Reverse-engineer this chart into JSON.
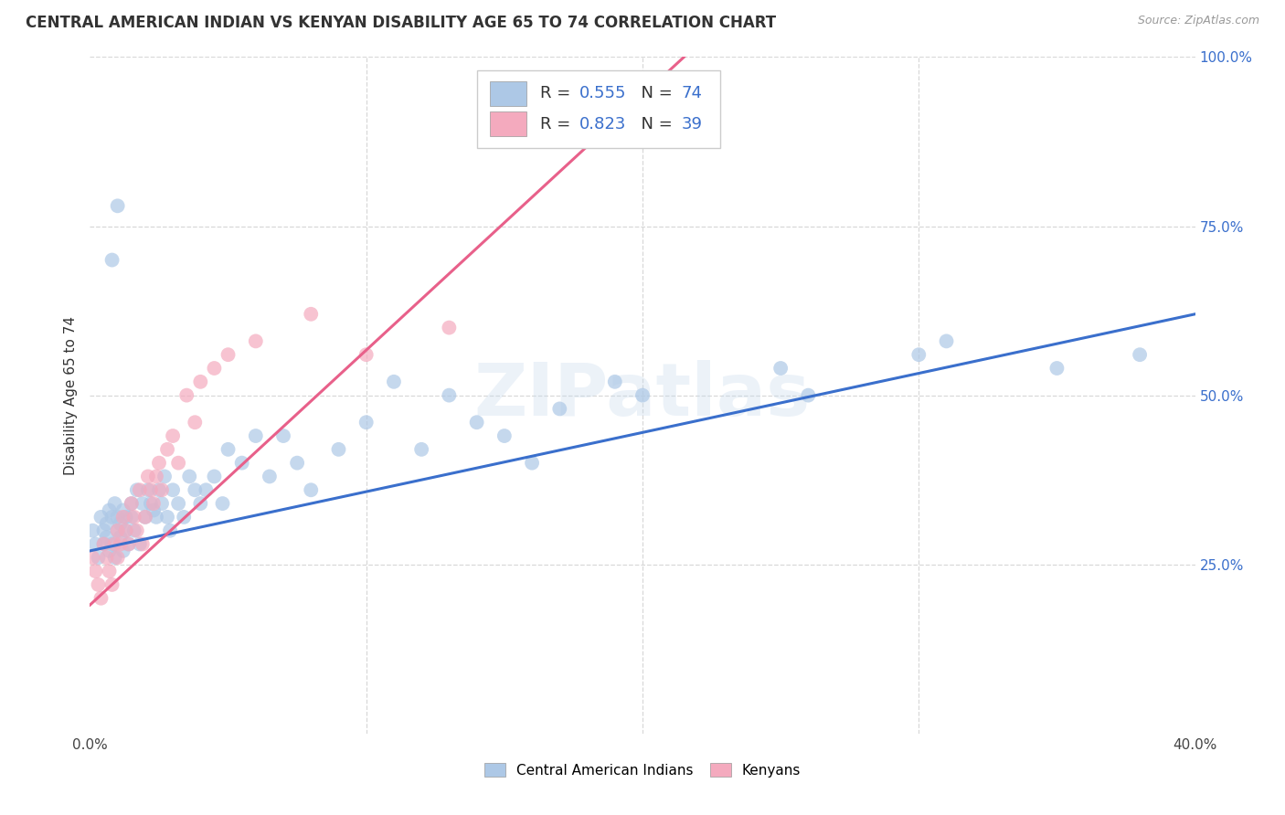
{
  "title": "CENTRAL AMERICAN INDIAN VS KENYAN DISABILITY AGE 65 TO 74 CORRELATION CHART",
  "source": "Source: ZipAtlas.com",
  "ylabel": "Disability Age 65 to 74",
  "xlim": [
    0.0,
    0.4
  ],
  "ylim": [
    0.0,
    1.0
  ],
  "xtick_vals": [
    0.0,
    0.1,
    0.2,
    0.3,
    0.4
  ],
  "xtick_labels": [
    "0.0%",
    "",
    "",
    "",
    "40.0%"
  ],
  "ytick_vals": [
    0.0,
    0.25,
    0.5,
    0.75,
    1.0
  ],
  "ytick_labels_left": [
    "",
    "",
    "",
    "",
    ""
  ],
  "ytick_labels_right": [
    "",
    "25.0%",
    "50.0%",
    "75.0%",
    "100.0%"
  ],
  "legend1_R": "0.555",
  "legend1_N": "74",
  "legend2_R": "0.823",
  "legend2_N": "39",
  "blue_fill": "#adc8e6",
  "pink_fill": "#f4aabe",
  "blue_line": "#3a6fcc",
  "pink_line": "#e8608a",
  "text_dark": "#333333",
  "text_blue": "#3a6fcc",
  "grid_color": "#d8d8d8",
  "watermark": "ZIPatlas",
  "bg": "#ffffff",
  "blue_x": [
    0.001,
    0.002,
    0.003,
    0.004,
    0.005,
    0.005,
    0.006,
    0.006,
    0.007,
    0.007,
    0.008,
    0.008,
    0.009,
    0.009,
    0.01,
    0.01,
    0.011,
    0.011,
    0.012,
    0.012,
    0.013,
    0.013,
    0.014,
    0.015,
    0.015,
    0.016,
    0.017,
    0.018,
    0.019,
    0.02,
    0.021,
    0.022,
    0.023,
    0.024,
    0.025,
    0.026,
    0.027,
    0.028,
    0.029,
    0.03,
    0.032,
    0.034,
    0.036,
    0.038,
    0.04,
    0.042,
    0.045,
    0.048,
    0.05,
    0.055,
    0.06,
    0.065,
    0.07,
    0.075,
    0.08,
    0.09,
    0.1,
    0.11,
    0.12,
    0.13,
    0.14,
    0.15,
    0.16,
    0.17,
    0.19,
    0.2,
    0.25,
    0.26,
    0.3,
    0.31,
    0.35,
    0.38,
    0.008,
    0.01
  ],
  "blue_y": [
    0.3,
    0.28,
    0.26,
    0.32,
    0.3,
    0.28,
    0.31,
    0.29,
    0.33,
    0.27,
    0.32,
    0.28,
    0.34,
    0.26,
    0.3,
    0.32,
    0.31,
    0.29,
    0.33,
    0.27,
    0.32,
    0.3,
    0.28,
    0.34,
    0.32,
    0.3,
    0.36,
    0.28,
    0.34,
    0.32,
    0.36,
    0.34,
    0.33,
    0.32,
    0.36,
    0.34,
    0.38,
    0.32,
    0.3,
    0.36,
    0.34,
    0.32,
    0.38,
    0.36,
    0.34,
    0.36,
    0.38,
    0.34,
    0.42,
    0.4,
    0.44,
    0.38,
    0.44,
    0.4,
    0.36,
    0.42,
    0.46,
    0.52,
    0.42,
    0.5,
    0.46,
    0.44,
    0.4,
    0.48,
    0.52,
    0.5,
    0.54,
    0.5,
    0.56,
    0.58,
    0.54,
    0.56,
    0.7,
    0.78
  ],
  "pink_x": [
    0.001,
    0.002,
    0.003,
    0.004,
    0.005,
    0.006,
    0.007,
    0.008,
    0.009,
    0.01,
    0.01,
    0.011,
    0.012,
    0.013,
    0.014,
    0.015,
    0.016,
    0.017,
    0.018,
    0.019,
    0.02,
    0.021,
    0.022,
    0.023,
    0.024,
    0.025,
    0.026,
    0.028,
    0.03,
    0.032,
    0.035,
    0.038,
    0.04,
    0.045,
    0.05,
    0.06,
    0.08,
    0.1,
    0.13
  ],
  "pink_y": [
    0.26,
    0.24,
    0.22,
    0.2,
    0.28,
    0.26,
    0.24,
    0.22,
    0.28,
    0.26,
    0.3,
    0.28,
    0.32,
    0.3,
    0.28,
    0.34,
    0.32,
    0.3,
    0.36,
    0.28,
    0.32,
    0.38,
    0.36,
    0.34,
    0.38,
    0.4,
    0.36,
    0.42,
    0.44,
    0.4,
    0.5,
    0.46,
    0.52,
    0.54,
    0.56,
    0.58,
    0.62,
    0.56,
    0.6
  ],
  "blue_line_pts": [
    [
      0.0,
      0.27
    ],
    [
      0.4,
      0.62
    ]
  ],
  "pink_line_pts": [
    [
      0.0,
      0.19
    ],
    [
      0.215,
      1.0
    ]
  ]
}
